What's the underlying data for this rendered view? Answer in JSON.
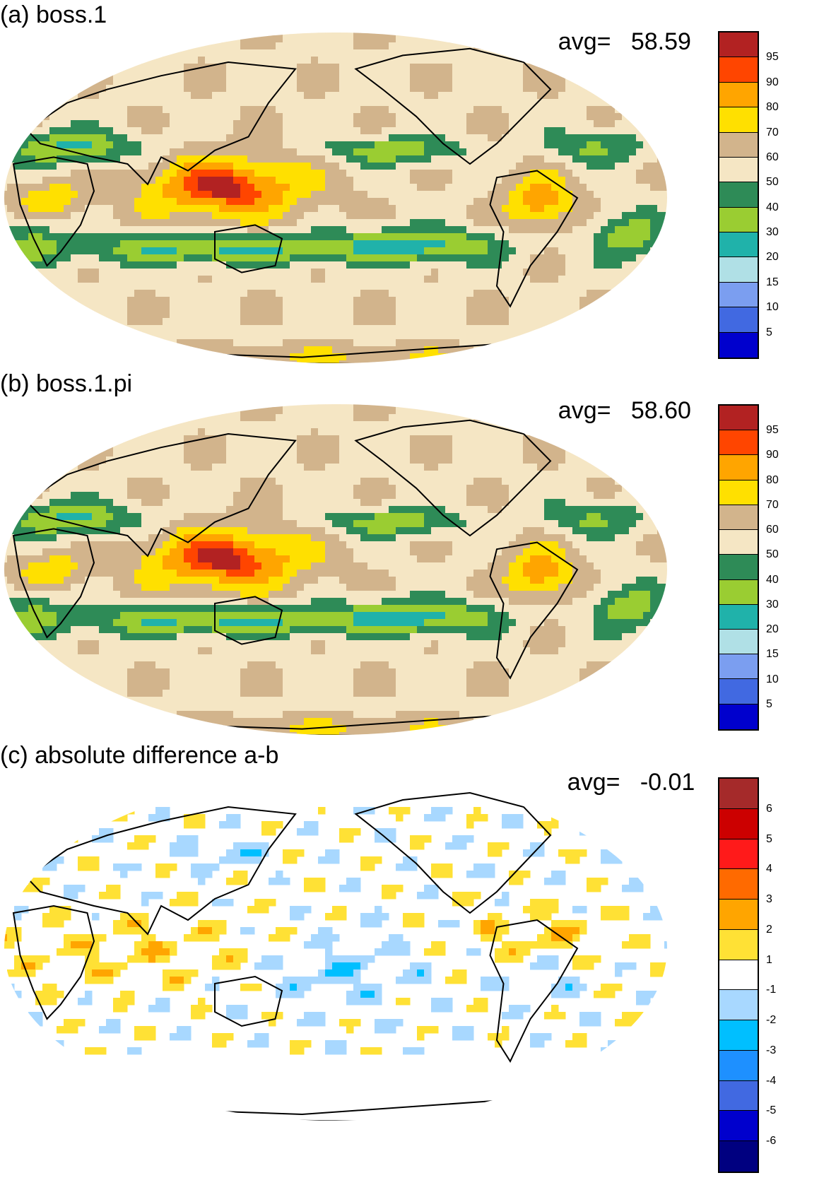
{
  "panels": [
    {
      "id": "a",
      "title": "(a) boss.1",
      "avg_label": "avg=",
      "avg_value": "58.59",
      "field": "full",
      "colorbar": {
        "labels": [
          "95",
          "90",
          "80",
          "70",
          "60",
          "50",
          "40",
          "30",
          "20",
          "15",
          "10",
          "5"
        ],
        "colors": [
          "#b22222",
          "#ff4500",
          "#ffa500",
          "#ffe000",
          "#d2b48c",
          "#f5e6c4",
          "#2e8b57",
          "#9acd32",
          "#20b2aa",
          "#b0e0e6",
          "#7b9ef0",
          "#4169e1",
          "#0000cd"
        ]
      }
    },
    {
      "id": "b",
      "title": "(b) boss.1.pi",
      "avg_label": "avg=",
      "avg_value": "58.60",
      "field": "full",
      "colorbar": {
        "labels": [
          "95",
          "90",
          "80",
          "70",
          "60",
          "50",
          "40",
          "30",
          "20",
          "15",
          "10",
          "5"
        ],
        "colors": [
          "#b22222",
          "#ff4500",
          "#ffa500",
          "#ffe000",
          "#d2b48c",
          "#f5e6c4",
          "#2e8b57",
          "#9acd32",
          "#20b2aa",
          "#b0e0e6",
          "#7b9ef0",
          "#4169e1",
          "#0000cd"
        ]
      }
    },
    {
      "id": "c",
      "title": "(c) absolute difference a-b",
      "avg_label": "avg=",
      "avg_value": "-0.01",
      "field": "diff",
      "colorbar": {
        "labels": [
          "6",
          "5",
          "4",
          "3",
          "2",
          "1",
          "-1",
          "-2",
          "-3",
          "-4",
          "-5",
          "-6"
        ],
        "colors": [
          "#a52a2a",
          "#cc0000",
          "#ff1a1a",
          "#ff6a00",
          "#ffa500",
          "#ffe135",
          "#ffffff",
          "#a8d8ff",
          "#00bfff",
          "#1e90ff",
          "#4169e1",
          "#0000cd",
          "#000080"
        ]
      }
    }
  ]
}
